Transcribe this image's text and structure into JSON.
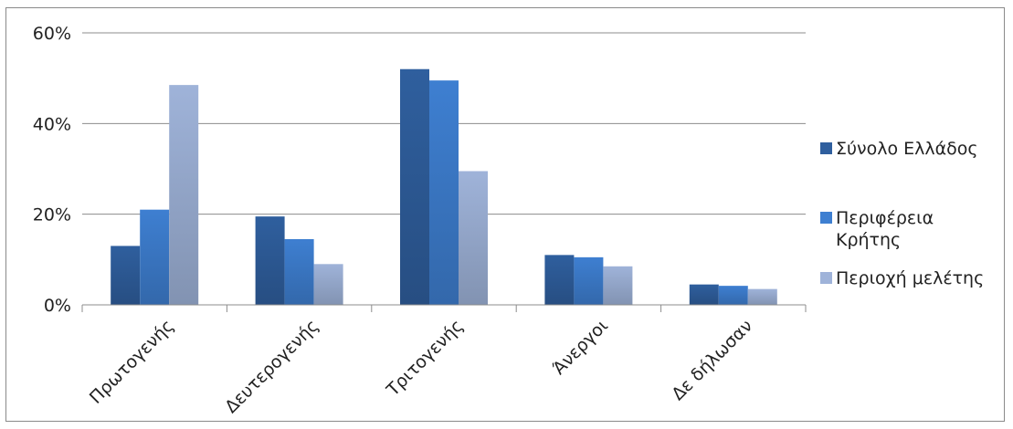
{
  "chart_data": {
    "type": "bar",
    "categories": [
      "Πρωτογενής",
      "Δευτερογενής",
      "Τριτογενής",
      "Άνεργοι",
      "Δε δήλωσαν"
    ],
    "series": [
      {
        "name": "Σύνολο Ελλάδος",
        "values": [
          13,
          19.5,
          52,
          11,
          4.5
        ],
        "color": "#2f5f9e"
      },
      {
        "name": "Περιφέρεια Κρήτης",
        "values": [
          21,
          14.5,
          49.5,
          10.5,
          4.2
        ],
        "color": "#3e7fd1"
      },
      {
        "name": "Περιοχή μελέτης",
        "values": [
          48.5,
          9,
          29.5,
          8.5,
          3.5
        ],
        "color": "#9fb3d9"
      }
    ],
    "legend_lines": [
      [
        "Σύνολο Ελλάδος"
      ],
      [
        "Περιφέρεια",
        "Κρήτης"
      ],
      [
        "Περιοχή μελέτης"
      ]
    ],
    "yticks": [
      "0%",
      "20%",
      "40%",
      "60%"
    ],
    "ylim": [
      0,
      60
    ],
    "title": "",
    "xlabel": "",
    "ylabel": "",
    "grid": true,
    "legend": "right"
  }
}
